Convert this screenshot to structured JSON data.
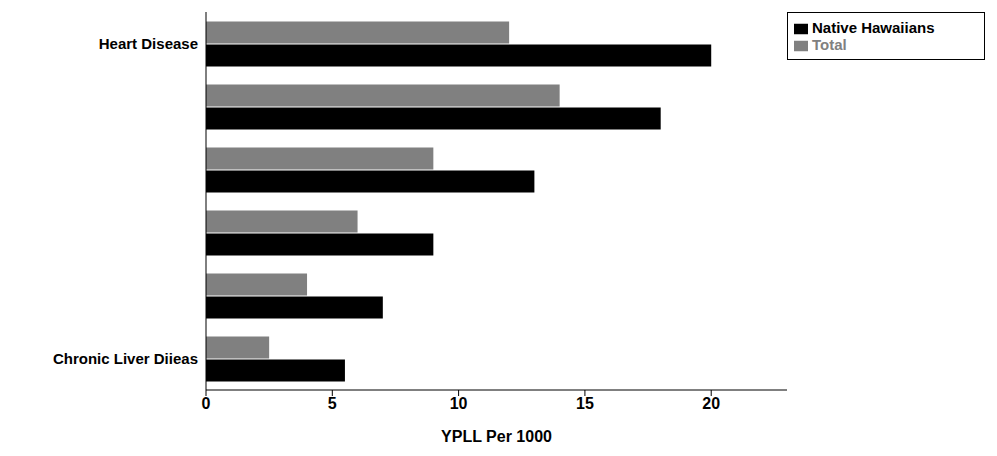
{
  "chart_data": {
    "type": "bar",
    "orientation": "horizontal",
    "categories": [
      "Heart Disease",
      null,
      null,
      null,
      null,
      "Chronic Liver Diieas"
    ],
    "series": [
      {
        "name": "Total",
        "color": "#808080",
        "values": [
          12,
          14,
          9,
          6,
          4,
          2.5
        ]
      },
      {
        "name": "Native Hawaiians",
        "color": "#000000",
        "values": [
          20,
          18,
          13,
          9,
          7,
          5.5
        ]
      }
    ],
    "xlabel": "YPLL Per 1000",
    "xlim": [
      0,
      23
    ],
    "xticks": [
      0,
      5,
      10,
      15,
      20
    ],
    "legend": "upper right",
    "grid": false
  }
}
